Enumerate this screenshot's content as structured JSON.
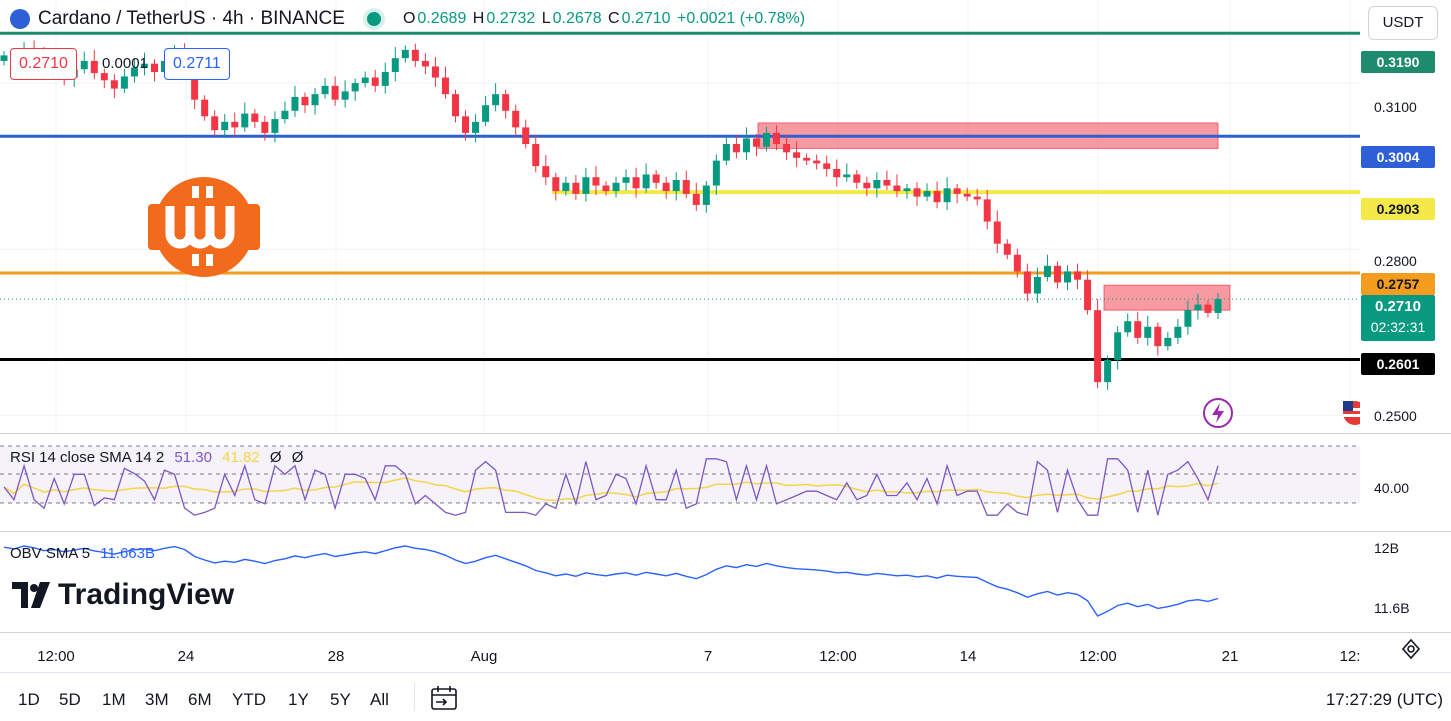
{
  "header": {
    "symbol_title": "Cardano / TetherUS · 4h · BINANCE",
    "open_label": "O",
    "open": "0.2689",
    "high_label": "H",
    "high": "0.2732",
    "low_label": "L",
    "low": "0.2678",
    "close_label": "C",
    "close": "0.2710",
    "change": "+0.0021 (+0.78%)",
    "sell_price": "0.2710",
    "spread": "0.0001",
    "buy_price": "0.2711",
    "currency": "USDT"
  },
  "price_axis": {
    "labels": [
      "0.3100",
      "0.2800",
      "0.2500"
    ],
    "levels": [
      {
        "value": 0.319,
        "label": "0.3190",
        "color": "#1e8a6e"
      },
      {
        "value": 0.3004,
        "label": "0.3004",
        "color": "#2d5fd6"
      },
      {
        "value": 0.2903,
        "label": "0.2903",
        "color": "#f5e94a"
      },
      {
        "value": 0.2757,
        "label": "0.2757",
        "color": "#f39c1e"
      },
      {
        "value": 0.2601,
        "label": "0.2601",
        "color": "#000000"
      }
    ],
    "last_price": "0.2710",
    "countdown": "02:32:31"
  },
  "chart_data": {
    "type": "candlestick",
    "symbol": "Cardano / TetherUS",
    "interval": "4h",
    "ylim": [
      0.247,
      0.325
    ],
    "x_ticks": [
      "12:00",
      "24",
      "28",
      "Aug",
      "7",
      "12:00",
      "14",
      "12:00",
      "21",
      "12:"
    ],
    "closes": [
      0.315,
      0.3135,
      0.316,
      0.3145,
      0.312,
      0.313,
      0.311,
      0.3125,
      0.314,
      0.3118,
      0.3105,
      0.309,
      0.3112,
      0.3128,
      0.3135,
      0.312,
      0.314,
      0.3155,
      0.313,
      0.307,
      0.304,
      0.3015,
      0.303,
      0.302,
      0.3045,
      0.303,
      0.301,
      0.3035,
      0.305,
      0.3075,
      0.306,
      0.308,
      0.3095,
      0.307,
      0.3085,
      0.31,
      0.311,
      0.3095,
      0.312,
      0.3145,
      0.316,
      0.314,
      0.313,
      0.311,
      0.308,
      0.304,
      0.301,
      0.303,
      0.306,
      0.308,
      0.305,
      0.302,
      0.299,
      0.295,
      0.293,
      0.2905,
      0.292,
      0.29,
      0.293,
      0.2915,
      0.2905,
      0.292,
      0.293,
      0.291,
      0.2935,
      0.292,
      0.2905,
      0.2925,
      0.29,
      0.288,
      0.2915,
      0.296,
      0.299,
      0.2975,
      0.3,
      0.2985,
      0.301,
      0.299,
      0.2975,
      0.2965,
      0.296,
      0.2955,
      0.2945,
      0.293,
      0.2935,
      0.292,
      0.291,
      0.2925,
      0.2915,
      0.2905,
      0.291,
      0.2895,
      0.2905,
      0.2885,
      0.291,
      0.29,
      0.2895,
      0.289,
      0.285,
      0.281,
      0.279,
      0.276,
      0.272,
      0.275,
      0.277,
      0.274,
      0.276,
      0.2745,
      0.269,
      0.256,
      0.26,
      0.265,
      0.267,
      0.264,
      0.266,
      0.2625,
      0.264,
      0.266,
      0.269,
      0.27,
      0.2685,
      0.271
    ],
    "rsi": {
      "label": "RSI 14 close SMA 14 2",
      "value": "51.30",
      "sma": "41.82",
      "extra1": "Ø",
      "extra2": "Ø",
      "axis_label": "40.00"
    },
    "obv": {
      "label": "OBV SMA 5",
      "value": "11.663B",
      "axis_top": "12B",
      "axis_bottom": "11.6B"
    }
  },
  "supply_zones": [
    {
      "from": 0.3028,
      "to": 0.2982
    },
    {
      "from": 0.2735,
      "to": 0.269
    }
  ],
  "brand": "TradingView",
  "bottom_bar": {
    "ranges": [
      "1D",
      "5D",
      "1M",
      "3M",
      "6M",
      "YTD",
      "1Y",
      "5Y",
      "All"
    ],
    "clock": "17:27:29 (UTC)"
  },
  "colors": {
    "up": "#089981",
    "down": "#f23645",
    "rsi": "#7e57c2",
    "rsi_sma": "#f5d547",
    "obv": "#2962ff"
  }
}
